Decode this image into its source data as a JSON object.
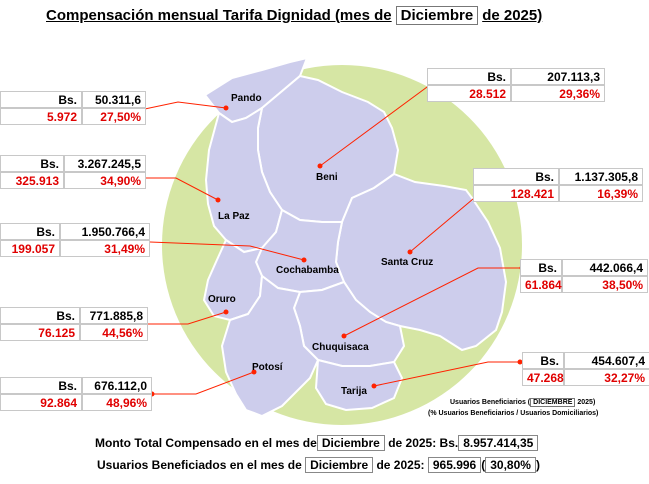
{
  "title": {
    "prefix": "Compensación mensual Tarifa Dignidad (mes de",
    "month": "Diciembre",
    "suffix": "de 2025)"
  },
  "colors": {
    "circle": "#d6e6a4",
    "region": "#cdcdec",
    "leader": "#ff2200",
    "red_text": "#e00000"
  },
  "departments": [
    {
      "name": "Pando",
      "currency": "Bs.",
      "amount": "50.311,6",
      "beneficiaries": "5.972",
      "percent": "27,50%"
    },
    {
      "name": "Beni",
      "currency": "Bs.",
      "amount": "207.113,3",
      "beneficiaries": "28.512",
      "percent": "29,36%"
    },
    {
      "name": "La Paz",
      "currency": "Bs.",
      "amount": "3.267.245,5",
      "beneficiaries": "325.913",
      "percent": "34,90%"
    },
    {
      "name": "Santa Cruz",
      "currency": "Bs.",
      "amount": "1.137.305,8",
      "beneficiaries": "128.421",
      "percent": "16,39%"
    },
    {
      "name": "Cochabamba",
      "currency": "Bs.",
      "amount": "1.950.766,4",
      "beneficiaries": "199.057",
      "percent": "31,49%"
    },
    {
      "name": "Chuquisaca",
      "currency": "Bs.",
      "amount": "442.066,4",
      "beneficiaries": "61.864",
      "percent": "38,50%"
    },
    {
      "name": "Oruro",
      "currency": "Bs.",
      "amount": "771.885,8",
      "beneficiaries": "76.125",
      "percent": "44,56%"
    },
    {
      "name": "Tarija",
      "currency": "Bs.",
      "amount": "454.607,4",
      "beneficiaries": "47.268",
      "percent": "32,27%"
    },
    {
      "name": "Potosí",
      "currency": "Bs.",
      "amount": "676.112,0",
      "beneficiaries": "92.864",
      "percent": "48,96%"
    }
  ],
  "legend_note": {
    "line1_prefix": "Usuarios Beneficiarios (",
    "line1_month": "DICIEMBRE",
    "line1_suffix": "2025)",
    "line2": "(% Usuarios Beneficiarios / Usuarios Domiciliarios)"
  },
  "summary": {
    "total_prefix": "Monto Total Compensado en el mes de",
    "total_month": "Diciembre",
    "total_middle": "de 2025: Bs.",
    "total_value": "8.957.414,35",
    "users_prefix": "Usuarios Beneficiados en el mes de",
    "users_month": "Diciembre",
    "users_middle": "de 2025:",
    "users_value": "965.996",
    "users_percent": "30,80%"
  }
}
